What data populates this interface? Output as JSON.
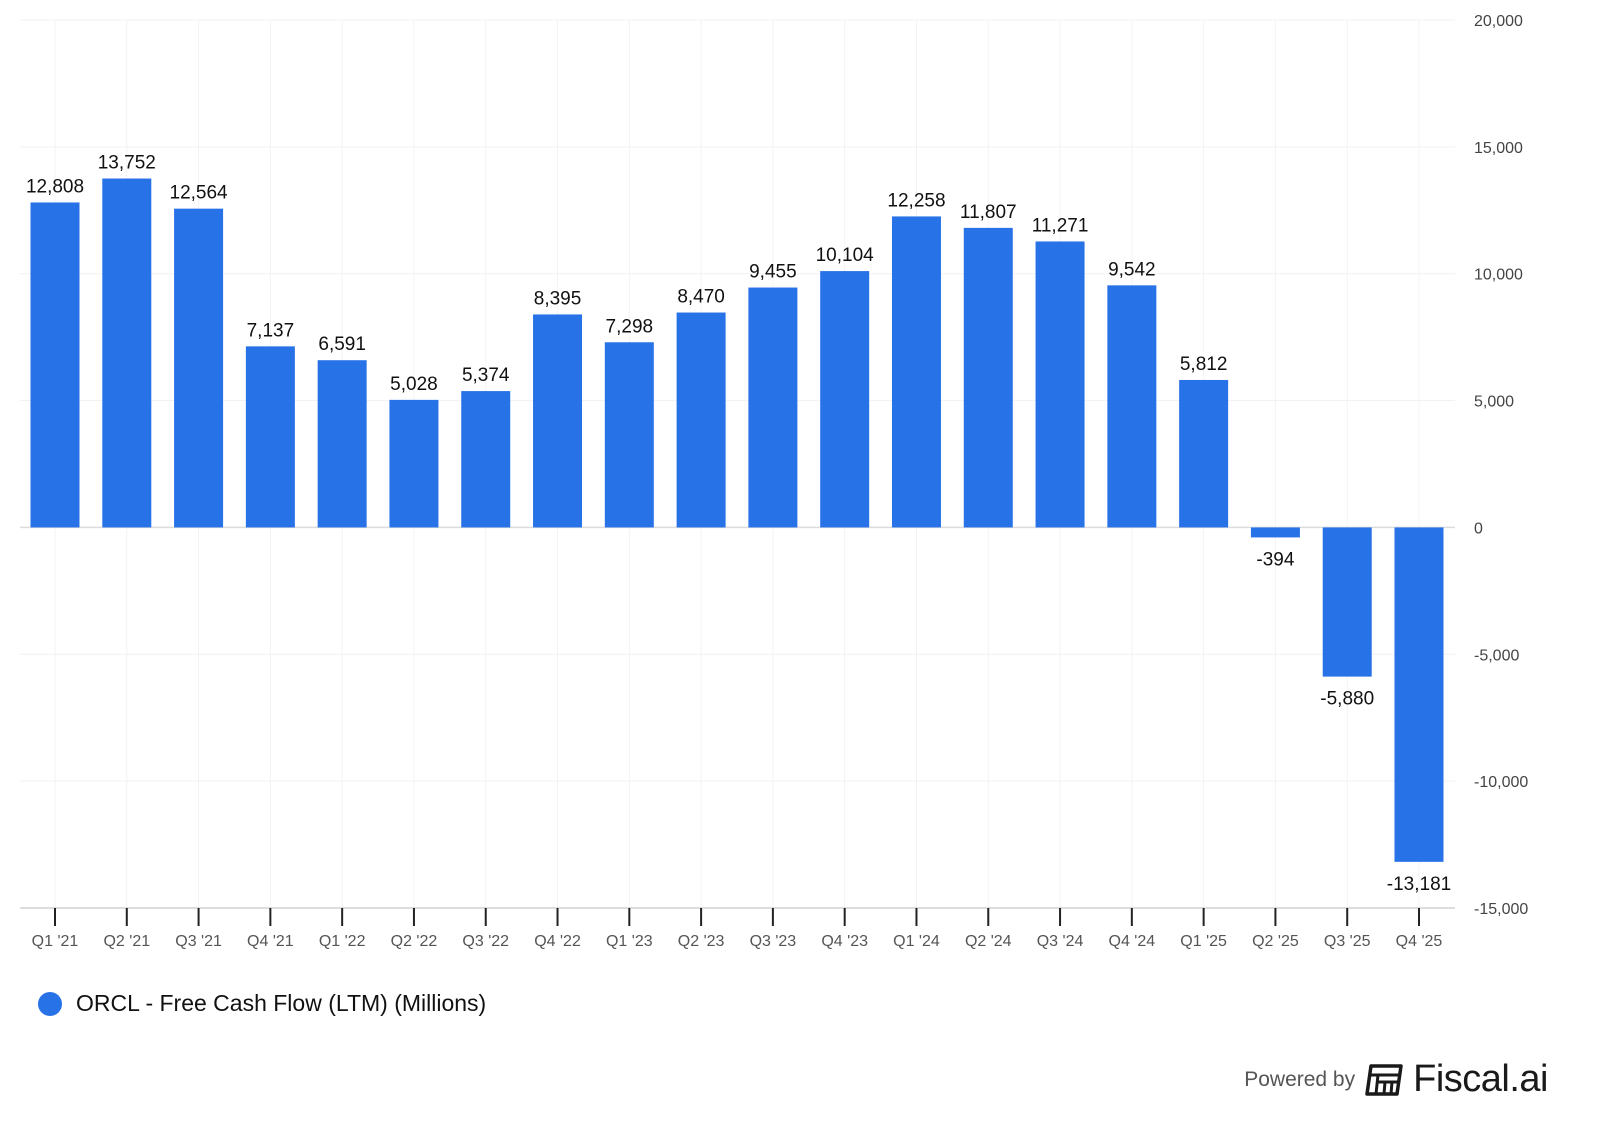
{
  "chart_data": {
    "type": "bar",
    "title": "",
    "xlabel": "",
    "ylabel": "",
    "categories": [
      "Q1 '21",
      "Q2 '21",
      "Q3 '21",
      "Q4 '21",
      "Q1 '22",
      "Q2 '22",
      "Q3 '22",
      "Q4 '22",
      "Q1 '23",
      "Q2 '23",
      "Q3 '23",
      "Q4 '23",
      "Q1 '24",
      "Q2 '24",
      "Q3 '24",
      "Q4 '24",
      "Q1 '25",
      "Q2 '25",
      "Q3 '25",
      "Q4 '25"
    ],
    "series": [
      {
        "name": "ORCL - Free Cash Flow (LTM) (Millions)",
        "color": "#2872e8",
        "values": [
          12808,
          13752,
          12564,
          7137,
          6591,
          5028,
          5374,
          8395,
          7298,
          8470,
          9455,
          10104,
          12258,
          11807,
          11271,
          9542,
          5812,
          -394,
          -5880,
          -13181
        ],
        "labels": [
          "12,808",
          "13,752",
          "12,564",
          "7,137",
          "6,591",
          "5,028",
          "5,374",
          "8,395",
          "7,298",
          "8,470",
          "9,455",
          "10,104",
          "12,258",
          "11,807",
          "11,271",
          "9,542",
          "5,812",
          "-394",
          "-5,880",
          "-13,181"
        ]
      }
    ],
    "ylim": [
      -15000,
      20000
    ],
    "yticks": [
      20000,
      15000,
      10000,
      5000,
      0,
      -5000,
      -10000,
      -15000
    ],
    "ytick_labels": [
      "20,000",
      "15,000",
      "10,000",
      "5,000",
      "0",
      "-5,000",
      "-10,000",
      "-15,000"
    ],
    "y_axis_side": "right",
    "grid": true,
    "legend_position": "bottom-left"
  },
  "legend": {
    "label": "ORCL - Free Cash Flow (LTM) (Millions)",
    "color": "#2872e8"
  },
  "footer": {
    "powered_by": "Powered by",
    "brand": "Fiscal.ai"
  }
}
